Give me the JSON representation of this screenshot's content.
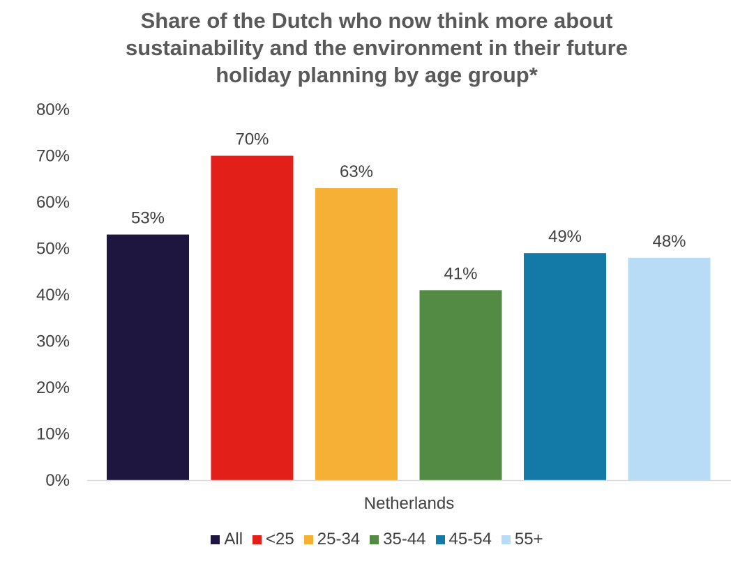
{
  "chart_data": {
    "type": "bar",
    "title_lines": [
      "Share of the Dutch who now think more about",
      "sustainability and the environment in their future",
      "holiday planning by age group*"
    ],
    "xlabel": "Netherlands",
    "ylabel": "",
    "ylim": [
      0,
      80
    ],
    "yticks": [
      "0%",
      "10%",
      "20%",
      "30%",
      "40%",
      "50%",
      "60%",
      "70%",
      "80%"
    ],
    "grid": false,
    "legend_position": "bottom",
    "categories": [
      "Netherlands"
    ],
    "series": [
      {
        "name": "All",
        "values": [
          53
        ],
        "label": "53%",
        "color": "#1f1640"
      },
      {
        "name": "<25",
        "values": [
          70
        ],
        "label": "70%",
        "color": "#e31f19"
      },
      {
        "name": "25-34",
        "values": [
          63
        ],
        "label": "63%",
        "color": "#f6b035"
      },
      {
        "name": "35-44",
        "values": [
          41
        ],
        "label": "41%",
        "color": "#538b45"
      },
      {
        "name": "45-54",
        "values": [
          49
        ],
        "label": "49%",
        "color": "#137aa8"
      },
      {
        "name": "55+",
        "values": [
          48
        ],
        "label": "48%",
        "color": "#b8dcf5"
      }
    ]
  }
}
